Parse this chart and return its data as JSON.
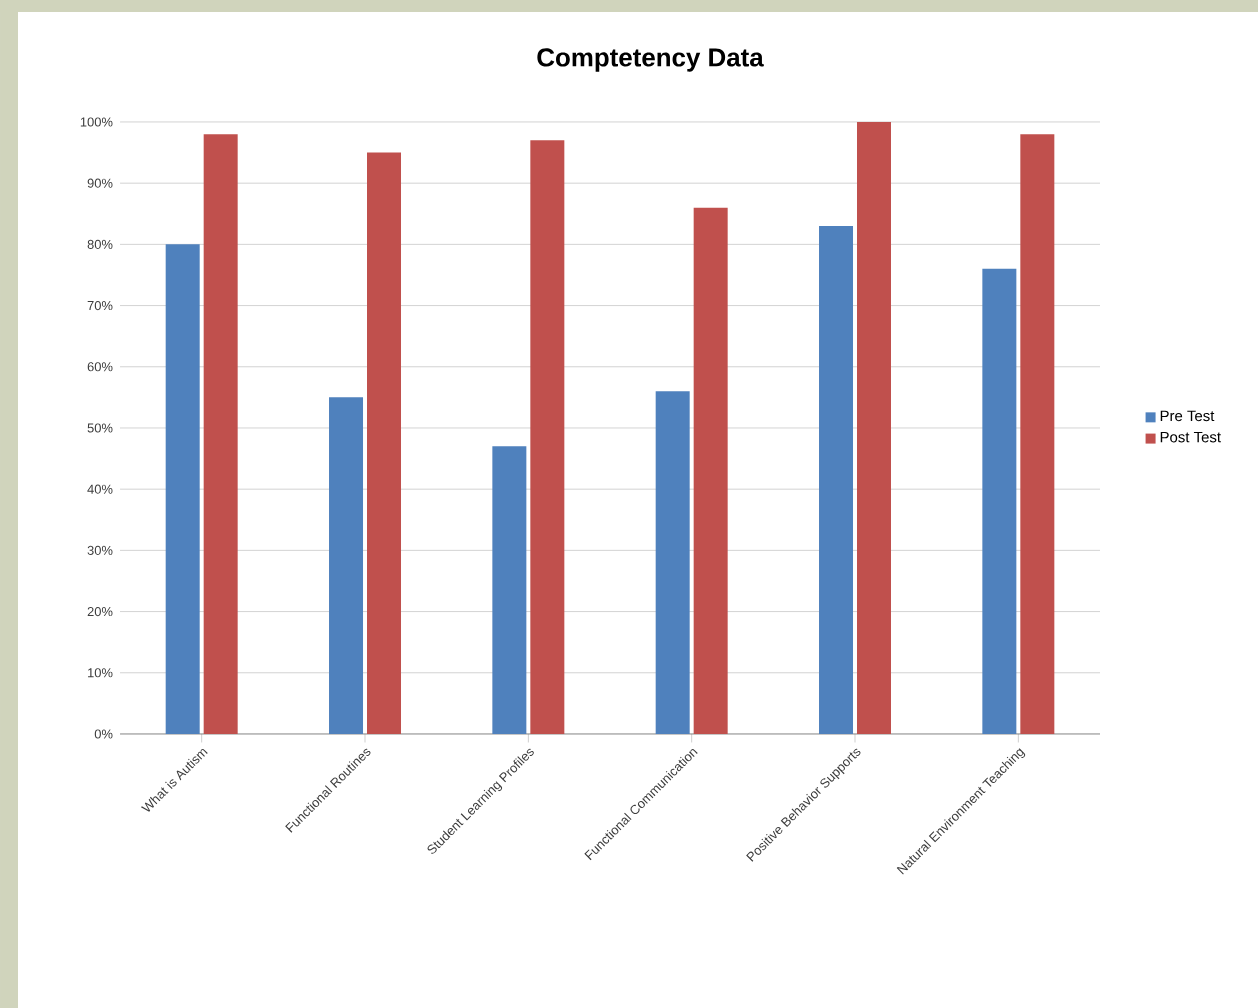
{
  "chart_data": {
    "type": "bar",
    "title": "Comptetency Data",
    "categories": [
      "What is Autism",
      "Functional Routines",
      "Student Learning Profiles",
      "Functional Communication",
      "Positive Behavior Supports",
      "Natural Environment Teaching"
    ],
    "series": [
      {
        "name": "Pre Test",
        "color": "#4f81bd",
        "values": [
          80,
          55,
          47,
          56,
          83,
          76
        ]
      },
      {
        "name": "Post Test",
        "color": "#c0504d",
        "values": [
          98,
          95,
          97,
          86,
          100,
          98
        ]
      }
    ],
    "ylim": [
      0,
      100
    ],
    "yticks": [
      {
        "value": 0,
        "label": "0%"
      },
      {
        "value": 10,
        "label": "10%"
      },
      {
        "value": 20,
        "label": "20%"
      },
      {
        "value": 30,
        "label": "30%"
      },
      {
        "value": 40,
        "label": "40%"
      },
      {
        "value": 50,
        "label": "50%"
      },
      {
        "value": 60,
        "label": "60%"
      },
      {
        "value": 70,
        "label": "70%"
      },
      {
        "value": 80,
        "label": "80%"
      },
      {
        "value": 90,
        "label": "90%"
      },
      {
        "value": 100,
        "label": "100%"
      }
    ],
    "grid": "y",
    "legend": "right"
  }
}
